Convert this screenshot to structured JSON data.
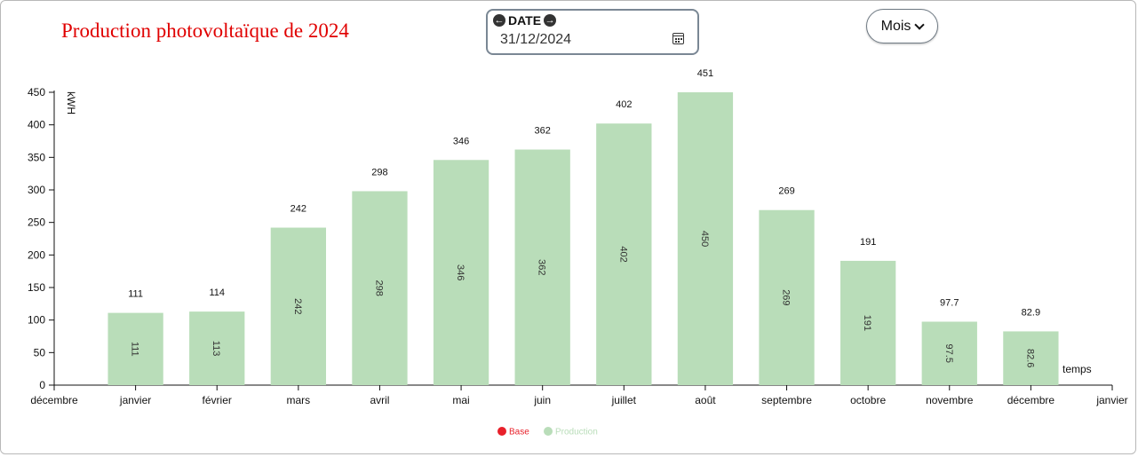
{
  "header": {
    "title": "Production photovoltaïque de 2024"
  },
  "date_picker": {
    "label": "DATE",
    "prev_icon": "arrow-left-circle-icon",
    "next_icon": "arrow-right-circle-icon",
    "value": "31/12/2024",
    "calendar_icon": "calendar-icon"
  },
  "period_select": {
    "value": "Mois",
    "icon": "chevron-down-icon"
  },
  "chart_data": {
    "type": "bar",
    "ylabel": "kWH",
    "xlabel": "temps",
    "ylim": [
      0,
      450
    ],
    "yticks": [
      0,
      50,
      100,
      150,
      200,
      250,
      300,
      350,
      400,
      450
    ],
    "x_axis_labels": [
      "décembre",
      "janvier",
      "février",
      "mars",
      "avril",
      "mai",
      "juin",
      "juillet",
      "août",
      "septembre",
      "octobre",
      "novembre",
      "décembre",
      "janvier"
    ],
    "categories": [
      "janvier",
      "février",
      "mars",
      "avril",
      "mai",
      "juin",
      "juillet",
      "août",
      "septembre",
      "octobre",
      "novembre",
      "décembre"
    ],
    "series": [
      {
        "name": "Production",
        "color": "#b9ddb9",
        "values": [
          111,
          113,
          242,
          298,
          346,
          362,
          402,
          450,
          269,
          191,
          97.5,
          82.6
        ],
        "top_labels": [
          "111",
          "114",
          "242",
          "298",
          "346",
          "362",
          "402",
          "451",
          "269",
          "191",
          "97.7",
          "82.9"
        ],
        "inner_labels": [
          "111",
          "113",
          "242",
          "298",
          "346",
          "362",
          "402",
          "450",
          "269",
          "191",
          "97.5",
          "82.6"
        ]
      }
    ],
    "legend": {
      "placement": "bottom-center",
      "entries": [
        {
          "name": "Base",
          "color": "#e8202a"
        },
        {
          "name": "Production",
          "color": "#b9ddb9"
        }
      ]
    },
    "grid": false
  }
}
